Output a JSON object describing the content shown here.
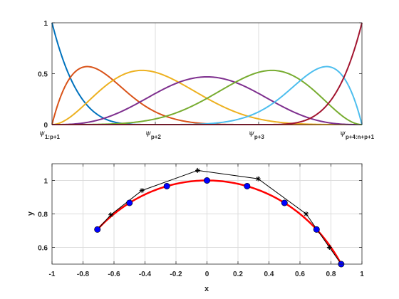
{
  "chart_data": [
    {
      "type": "line",
      "title": "",
      "xlabel": "",
      "ylabel": "",
      "xlim": [
        0,
        1
      ],
      "ylim": [
        0,
        1
      ],
      "grid": "vertical",
      "legend": "none",
      "yticks": [
        0,
        0.5,
        1
      ],
      "ytick_labels": [
        "0",
        "0.5",
        "1"
      ],
      "xticks": [
        0,
        0.3333,
        0.6667,
        1
      ],
      "xtick_labels": [
        {
          "base": "ψ",
          "sub": "1:p+1"
        },
        {
          "base": "ψ",
          "sub": "p+2"
        },
        {
          "base": "ψ",
          "sub": "p+3"
        },
        {
          "base": "ψ",
          "sub": "p+4:n+p+1"
        }
      ],
      "knots": [
        0,
        0,
        0,
        0,
        0,
        0.3333,
        0.6667,
        1,
        1,
        1,
        1,
        1
      ],
      "degree": 4,
      "series": [
        {
          "color": "#0072BD",
          "width": 2
        },
        {
          "color": "#D95319",
          "width": 2
        },
        {
          "color": "#EDB120",
          "width": 2
        },
        {
          "color": "#7E2F8E",
          "width": 2
        },
        {
          "color": "#77AC30",
          "width": 2
        },
        {
          "color": "#4DBEEE",
          "width": 2
        },
        {
          "color": "#A2142F",
          "width": 2
        },
        {
          "color": "#0072BD",
          "width": 2
        }
      ]
    },
    {
      "type": "line",
      "title": "",
      "xlabel": "x",
      "ylabel": "y",
      "xlim": [
        -1,
        1
      ],
      "ylim": [
        0.5,
        1.1
      ],
      "grid": "both",
      "legend": "none",
      "xticks": [
        -1,
        -0.8,
        -0.6,
        -0.4,
        -0.2,
        0,
        0.2,
        0.4,
        0.6,
        0.8,
        1
      ],
      "xtick_labels": [
        "-1",
        "-0.8",
        "-0.6",
        "-0.4",
        "-0.2",
        "0",
        "0.2",
        "0.4",
        "0.6",
        "0.8",
        "1"
      ],
      "yticks": [
        0.6,
        0.8,
        1
      ],
      "ytick_labels": [
        "0.6",
        "0.8",
        "1"
      ],
      "arc": {
        "color": "#FF0000",
        "width": 2.5,
        "radius": 1,
        "theta_start_deg": 135,
        "theta_end_deg": 30
      },
      "sample_points": {
        "color": "#0000FF",
        "x": [
          -0.707,
          -0.5,
          -0.259,
          0,
          0.259,
          0.5,
          0.707,
          0.866
        ],
        "y": [
          0.707,
          0.866,
          0.966,
          1.0,
          0.966,
          0.866,
          0.707,
          0.5
        ]
      },
      "control_polygon": {
        "color": "#000000",
        "x": [
          -0.707,
          -0.62,
          -0.42,
          -0.06,
          0.33,
          0.64,
          0.79,
          0.866
        ],
        "y": [
          0.707,
          0.795,
          0.94,
          1.06,
          1.01,
          0.8,
          0.6,
          0.5
        ]
      }
    }
  ]
}
